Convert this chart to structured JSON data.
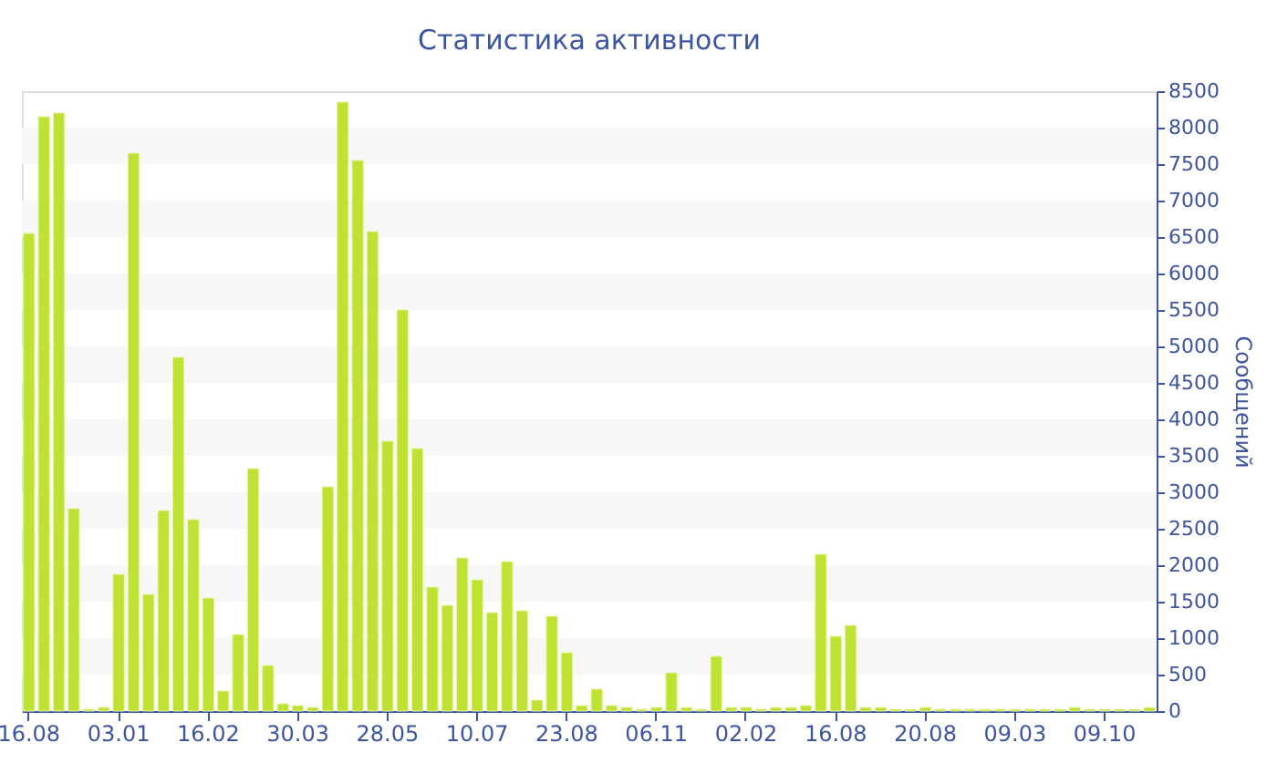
{
  "chart_data": {
    "type": "bar",
    "title": "Статистика активности",
    "ylabel": "Сообщений",
    "categories": [
      "16.08",
      null,
      null,
      null,
      null,
      null,
      "03.01",
      null,
      null,
      null,
      null,
      null,
      "16.02",
      null,
      null,
      null,
      null,
      null,
      "30.03",
      null,
      null,
      null,
      null,
      null,
      "28.05",
      null,
      null,
      null,
      null,
      null,
      "10.07",
      null,
      null,
      null,
      null,
      null,
      "23.08",
      null,
      null,
      null,
      null,
      null,
      "06.11",
      null,
      null,
      null,
      null,
      null,
      "02.02",
      null,
      null,
      null,
      null,
      null,
      "16.08",
      null,
      null,
      null,
      null,
      null,
      "20.08",
      null,
      null,
      null,
      null,
      null,
      "09.03",
      null,
      null,
      null,
      null,
      null,
      "09.10",
      null,
      null,
      null
    ],
    "values": [
      6550,
      8150,
      8200,
      2775,
      25,
      50,
      1875,
      7650,
      1600,
      2750,
      4850,
      2625,
      1550,
      275,
      1050,
      3325,
      625,
      100,
      75,
      50,
      3075,
      8350,
      7550,
      6575,
      3700,
      5500,
      3600,
      1700,
      1450,
      2100,
      1800,
      1350,
      2050,
      1375,
      150,
      1300,
      800,
      75,
      300,
      75,
      50,
      25,
      50,
      525,
      50,
      25,
      750,
      50,
      50,
      25,
      50,
      50,
      75,
      2150,
      1025,
      1175,
      50,
      50,
      25,
      25,
      50,
      25,
      25,
      25,
      25,
      25,
      25,
      25,
      25,
      25,
      50,
      25,
      25,
      25,
      25,
      50
    ],
    "color": "#bde234",
    "ylim": [
      0,
      8500
    ],
    "yticks": [
      0,
      500,
      1000,
      1500,
      2000,
      2500,
      3000,
      3500,
      4000,
      4500,
      5000,
      5500,
      6000,
      6500,
      7000,
      7500,
      8000,
      8500
    ],
    "bands": [
      {
        "axis": "y",
        "from": 500,
        "to": 1000,
        "color": "#f7f7f7"
      },
      {
        "axis": "y",
        "from": 1500,
        "to": 2000,
        "color": "#f7f7f7"
      },
      {
        "axis": "y",
        "from": 2500,
        "to": 3000,
        "color": "#f7f7f7"
      },
      {
        "axis": "y",
        "from": 3500,
        "to": 4000,
        "color": "#f7f7f7"
      },
      {
        "axis": "y",
        "from": 4500,
        "to": 5000,
        "color": "#f7f7f7"
      },
      {
        "axis": "y",
        "from": 5500,
        "to": 6000,
        "color": "#f7f7f7"
      },
      {
        "axis": "y",
        "from": 6500,
        "to": 7000,
        "color": "#f7f7f7"
      },
      {
        "axis": "y",
        "from": 7500,
        "to": 8000,
        "color": "#f7f7f7"
      }
    ]
  }
}
